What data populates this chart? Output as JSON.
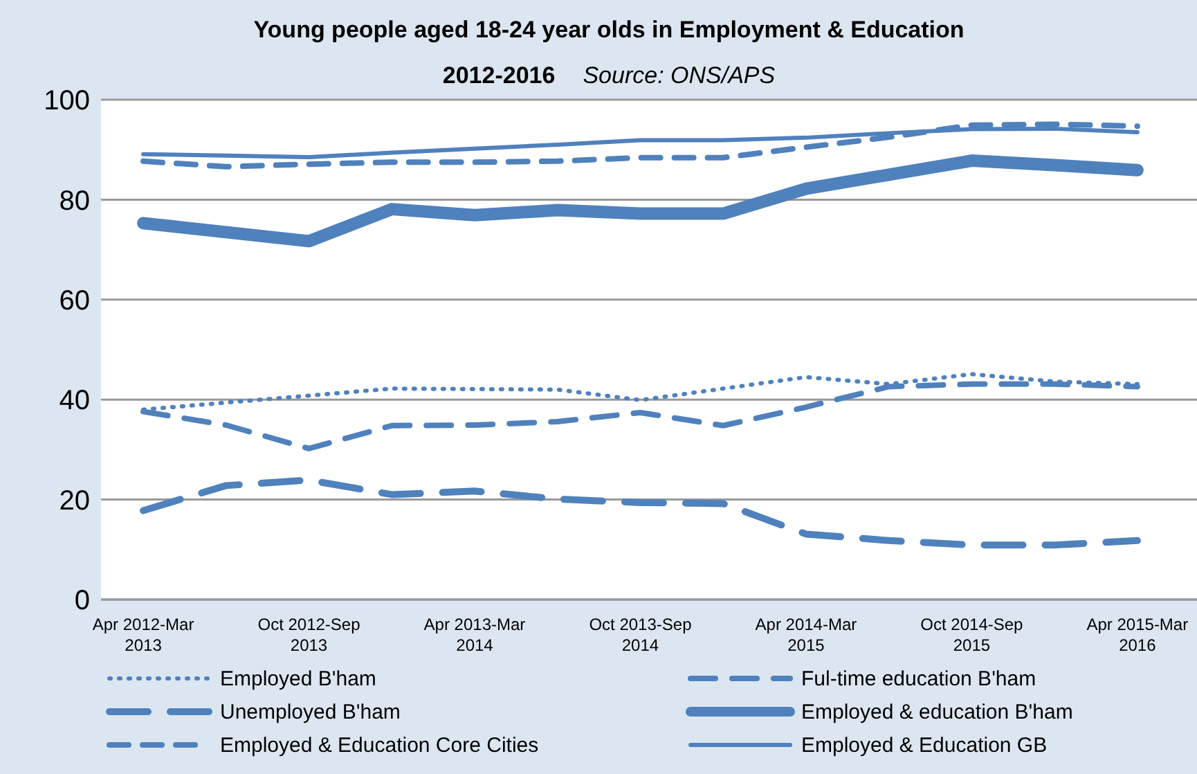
{
  "chart_data": {
    "type": "line",
    "title": "Young people aged 18-24 year olds in Employment & Education",
    "subtitle": "2012-2016",
    "annotations": [
      "Source: ONS/APS"
    ],
    "categories": [
      "Apr 2012-Mar 2013",
      null,
      "Oct 2012-Sep 2013",
      null,
      "Apr 2013-Mar 2014",
      null,
      "Oct 2013-Sep 2014",
      null,
      "Apr 2014-Mar 2015",
      null,
      "Oct 2014-Sep 2015",
      null,
      "Apr 2015-Mar 2016"
    ],
    "series": [
      {
        "name": "Employed B'ham",
        "color": "#4f81bd",
        "line_style": "dotted",
        "values": [
          38,
          39.4,
          40.8,
          42.2,
          42.1,
          42,
          39.9,
          42.2,
          44.5,
          43.1,
          45.1,
          43.6,
          43.1
        ]
      },
      {
        "name": "Ful-time education B'ham",
        "color": "#4f81bd",
        "line_style": "dashed",
        "values": [
          37.6,
          34.9,
          30.2,
          34.8,
          34.9,
          35.6,
          37.4,
          34.8,
          38.5,
          42.6,
          43.1,
          43.1,
          42.6
        ]
      },
      {
        "name": "Unemployed B'ham",
        "color": "#4f81bd",
        "line_style": "dashed",
        "values": [
          17.8,
          22.8,
          23.9,
          21,
          21.7,
          20.1,
          19.4,
          19.2,
          13.1,
          11.8,
          10.9,
          10.9,
          11.8
        ]
      },
      {
        "name": "Employed & education B'ham",
        "color": "#4f81bd",
        "line_style": "solid",
        "values": [
          75.3,
          73.5,
          71.7,
          78.1,
          76.9,
          77.9,
          77.2,
          77.2,
          82.2,
          85,
          87.8,
          86.9,
          85.9
        ]
      },
      {
        "name": "Employed & Education Core Cities",
        "color": "#4f81bd",
        "line_style": "dashed",
        "values": [
          87.7,
          86.6,
          87.1,
          87.5,
          87.5,
          87.7,
          88.4,
          88.4,
          90.5,
          92.5,
          94.9,
          95.1,
          94.7
        ]
      },
      {
        "name": "Employed & Education GB",
        "color": "#4f81bd",
        "line_style": "solid",
        "values": [
          89.1,
          88.8,
          88.5,
          89.4,
          90.2,
          91,
          91.9,
          91.9,
          92.4,
          93.3,
          94.1,
          94.2,
          93.5
        ]
      }
    ],
    "ylim": [
      0,
      100
    ],
    "yticks": [
      0,
      20,
      40,
      60,
      80,
      100
    ],
    "grid": "y",
    "legend": "bottom",
    "marker": "none"
  }
}
